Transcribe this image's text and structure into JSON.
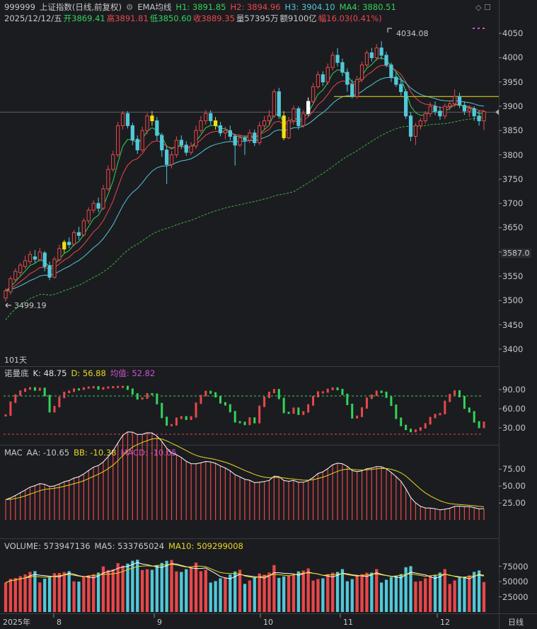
{
  "header": {
    "symbol": "999999",
    "name": "上证指数(日线,前复权)",
    "ema_label": "EMA均线",
    "h1": "H1: 3891.85",
    "h2": "H2: 3894.96",
    "h3": "H3: 3904.10",
    "ma4": "MA4: 3880.51",
    "date": "2025/12/12/五",
    "open": "开3869.41",
    "high": "高3891.81",
    "low": "低3850.60",
    "close": "收3889.35",
    "vol": "量57395万",
    "amount": "额9100亿",
    "change": "幅16.03(0.41%)",
    "high_marker": "4034.08",
    "low_marker": "3499.19",
    "days": "101天",
    "price_marker": "3587.0",
    "corner": "◇ ☐"
  },
  "kd": {
    "name": "诺曼底",
    "k": "K: 48.75",
    "d": "D: 56.88",
    "avg": "均值: 52.82"
  },
  "macd": {
    "name": "MAC",
    "aa": "AA: -10.65",
    "bb": "BB: -10.38",
    "macd": "MACD: -10.65"
  },
  "volume": {
    "name": "VOLUME: 573947136",
    "ma5": "MA5: 533765024",
    "ma10": "MA10: 509299008"
  },
  "x_labels": [
    "2025年",
    "8",
    "9",
    "10",
    "11",
    "12",
    "日线"
  ],
  "colors": {
    "up": "#e8484a",
    "down": "#52c8d8",
    "flat_yellow": "#f0e010",
    "ema1": "#ffffff",
    "ema2": "#e8d820",
    "ema3": "#32d45a",
    "ma4": "#3fb13f"
  },
  "chart_data": [
    {
      "type": "candlestick",
      "title": "上证指数(日线,前复权)",
      "ylim": [
        3375,
        4075
      ],
      "yticks": [
        "4050",
        "4000",
        "3950",
        "3900",
        "3850",
        "3800",
        "3750",
        "3700",
        "3650",
        "3600",
        "3550",
        "3500",
        "3450",
        "3400"
      ],
      "high": 4034.08,
      "low": 3499.19,
      "last": {
        "open": 3869.41,
        "high": 3891.81,
        "low": 3850.6,
        "close": 3889.35
      },
      "candles": [
        [
          3505,
          3520,
          3498,
          3525
        ],
        [
          3518,
          3545,
          3512,
          3550
        ],
        [
          3543,
          3560,
          3538,
          3566
        ],
        [
          3558,
          3573,
          3550,
          3578
        ],
        [
          3570,
          3582,
          3565,
          3592
        ],
        [
          3580,
          3595,
          3574,
          3602
        ],
        [
          3590,
          3585,
          3578,
          3604
        ],
        [
          3584,
          3600,
          3580,
          3608
        ],
        [
          3598,
          3570,
          3560,
          3602
        ],
        [
          3572,
          3548,
          3542,
          3580
        ],
        [
          3548,
          3585,
          3545,
          3590
        ],
        [
          3584,
          3607,
          3580,
          3615
        ],
        [
          3606,
          3620,
          3598,
          3625
        ],
        [
          3620,
          3615,
          3608,
          3630
        ],
        [
          3616,
          3640,
          3612,
          3645
        ],
        [
          3640,
          3634,
          3625,
          3652
        ],
        [
          3635,
          3664,
          3632,
          3670
        ],
        [
          3664,
          3686,
          3658,
          3692
        ],
        [
          3686,
          3700,
          3680,
          3706
        ],
        [
          3700,
          3690,
          3682,
          3712
        ],
        [
          3690,
          3730,
          3686,
          3738
        ],
        [
          3730,
          3770,
          3726,
          3778
        ],
        [
          3770,
          3800,
          3765,
          3808
        ],
        [
          3800,
          3860,
          3795,
          3868
        ],
        [
          3860,
          3885,
          3852,
          3890
        ],
        [
          3885,
          3860,
          3854,
          3890
        ],
        [
          3860,
          3830,
          3820,
          3866
        ],
        [
          3832,
          3810,
          3802,
          3840
        ],
        [
          3810,
          3850,
          3806,
          3858
        ],
        [
          3850,
          3880,
          3842,
          3886
        ],
        [
          3880,
          3870,
          3860,
          3890
        ],
        [
          3870,
          3840,
          3830,
          3878
        ],
        [
          3840,
          3810,
          3796,
          3845
        ],
        [
          3810,
          3780,
          3740,
          3818
        ],
        [
          3780,
          3800,
          3772,
          3808
        ],
        [
          3800,
          3830,
          3794,
          3838
        ],
        [
          3830,
          3820,
          3812,
          3840
        ],
        [
          3820,
          3805,
          3798,
          3828
        ],
        [
          3805,
          3818,
          3800,
          3826
        ],
        [
          3818,
          3850,
          3812,
          3860
        ],
        [
          3850,
          3870,
          3845,
          3880
        ],
        [
          3870,
          3885,
          3862,
          3892
        ],
        [
          3885,
          3870,
          3862,
          3892
        ],
        [
          3870,
          3860,
          3852,
          3878
        ],
        [
          3860,
          3845,
          3838,
          3868
        ],
        [
          3845,
          3850,
          3832,
          3858
        ],
        [
          3850,
          3838,
          3830,
          3860
        ],
        [
          3838,
          3820,
          3778,
          3843
        ],
        [
          3820,
          3835,
          3816,
          3842
        ],
        [
          3835,
          3830,
          3800,
          3840
        ],
        [
          3830,
          3845,
          3824,
          3852
        ],
        [
          3845,
          3825,
          3818,
          3852
        ],
        [
          3825,
          3860,
          3820,
          3868
        ],
        [
          3860,
          3870,
          3852,
          3880
        ],
        [
          3870,
          3880,
          3860,
          3892
        ],
        [
          3880,
          3930,
          3876,
          3935
        ],
        [
          3930,
          3880,
          3874,
          3938
        ],
        [
          3880,
          3835,
          3830,
          3890
        ],
        [
          3835,
          3870,
          3832,
          3878
        ],
        [
          3870,
          3895,
          3862,
          3902
        ],
        [
          3895,
          3860,
          3852,
          3900
        ],
        [
          3860,
          3885,
          3856,
          3892
        ],
        [
          3885,
          3910,
          3880,
          3918
        ],
        [
          3910,
          3940,
          3904,
          3948
        ],
        [
          3940,
          3965,
          3936,
          3972
        ],
        [
          3965,
          3950,
          3942,
          3972
        ],
        [
          3950,
          3980,
          3944,
          3988
        ],
        [
          3980,
          4005,
          3974,
          4012
        ],
        [
          4005,
          3990,
          3982,
          4020
        ],
        [
          3990,
          3970,
          3962,
          3998
        ],
        [
          3970,
          3945,
          3930,
          3978
        ],
        [
          3945,
          3920,
          3916,
          3955
        ],
        [
          3920,
          3955,
          3916,
          3962
        ],
        [
          3955,
          3985,
          3950,
          3992
        ],
        [
          3985,
          4010,
          3980,
          4015
        ],
        [
          4010,
          4000,
          3992,
          4020
        ],
        [
          4000,
          4020,
          3994,
          4028
        ],
        [
          4020,
          4005,
          3996,
          4034
        ],
        [
          4005,
          3985,
          3980,
          4012
        ],
        [
          3985,
          3960,
          3950,
          3990
        ],
        [
          3960,
          3945,
          3940,
          3970
        ],
        [
          3945,
          3930,
          3922,
          3958
        ],
        [
          3930,
          3880,
          3874,
          3935
        ],
        [
          3880,
          3838,
          3828,
          3888
        ],
        [
          3838,
          3860,
          3820,
          3866
        ],
        [
          3860,
          3870,
          3852,
          3876
        ],
        [
          3870,
          3885,
          3864,
          3890
        ],
        [
          3885,
          3900,
          3878,
          3908
        ],
        [
          3900,
          3890,
          3882,
          3910
        ],
        [
          3890,
          3880,
          3872,
          3900
        ],
        [
          3880,
          3900,
          3874,
          3906
        ],
        [
          3900,
          3905,
          3892,
          3912
        ],
        [
          3905,
          3920,
          3898,
          3935
        ],
        [
          3920,
          3902,
          3896,
          3928
        ],
        [
          3902,
          3890,
          3882,
          3910
        ],
        [
          3890,
          3895,
          3878,
          3902
        ],
        [
          3895,
          3880,
          3870,
          3900
        ],
        [
          3880,
          3870,
          3860,
          3892
        ],
        [
          3870,
          3889,
          3851,
          3892
        ]
      ]
    },
    {
      "type": "bar",
      "title": "诺曼底",
      "yticks": [
        "90.00",
        "60.00",
        "30.00"
      ],
      "ylim": [
        10,
        110
      ]
    },
    {
      "type": "bar",
      "title": "MAC",
      "yticks": [
        "75.00",
        "50.00",
        "25.00"
      ],
      "ylim": [
        -25,
        90
      ]
    },
    {
      "type": "bar",
      "title": "VOLUME",
      "yticks": [
        "75000",
        "50000",
        "25000"
      ],
      "ylim": [
        0,
        100000
      ]
    }
  ]
}
